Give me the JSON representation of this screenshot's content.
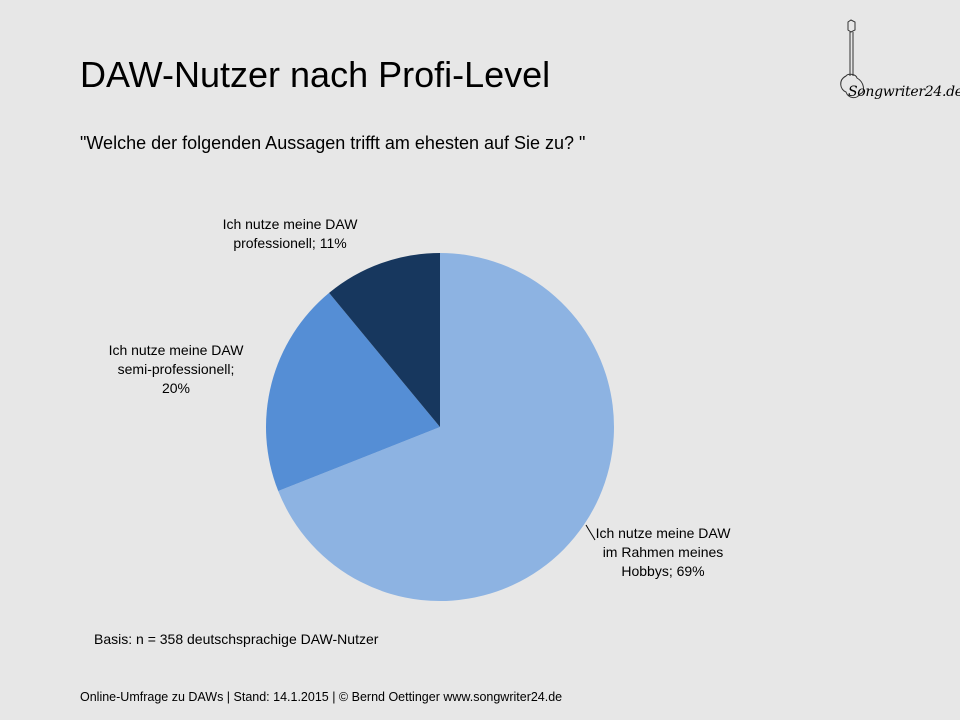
{
  "slide": {
    "title": "DAW-Nutzer nach Profi-Level",
    "subtitle": "\"Welche der folgenden Aussagen trifft am ehesten auf Sie zu? \"",
    "basis": "Basis: n = 358 deutschsprachige DAW-Nutzer",
    "footer": "Online-Umfrage zu DAWs |  Stand: 14.1.2015  | © Bernd Oettinger www.songwriter24.de",
    "logo_text": "Songwriter24.de"
  },
  "chart_data": {
    "type": "pie",
    "title": "DAW-Nutzer nach Profi-Level",
    "categories": [
      "Ich nutze meine DAW im Rahmen meines Hobbys",
      "Ich nutze meine DAW semi-professionell",
      "Ich nutze meine DAW professionell"
    ],
    "values": [
      69,
      20,
      11
    ],
    "unit": "%",
    "colors": [
      "#8db3e2",
      "#558ed5",
      "#17375e"
    ],
    "start_angle": "12 o'clock, clockwise",
    "labels": [
      [
        "Ich nutze meine DAW",
        "im Rahmen meines",
        "Hobbys; 69%"
      ],
      [
        "Ich nutze meine DAW",
        "semi-professionell;",
        "20%"
      ],
      [
        "Ich nutze meine DAW",
        "professionell; 11%"
      ]
    ]
  }
}
